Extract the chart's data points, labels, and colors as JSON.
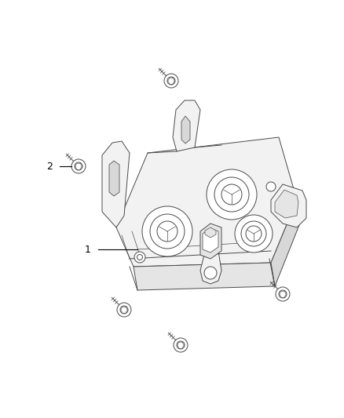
{
  "background_color": "#ffffff",
  "fig_width": 4.38,
  "fig_height": 5.33,
  "dpi": 100,
  "label_1": "1",
  "label_2": "2",
  "line_color": "#4a4a4a",
  "label_color": "#000000",
  "lw": 0.7
}
